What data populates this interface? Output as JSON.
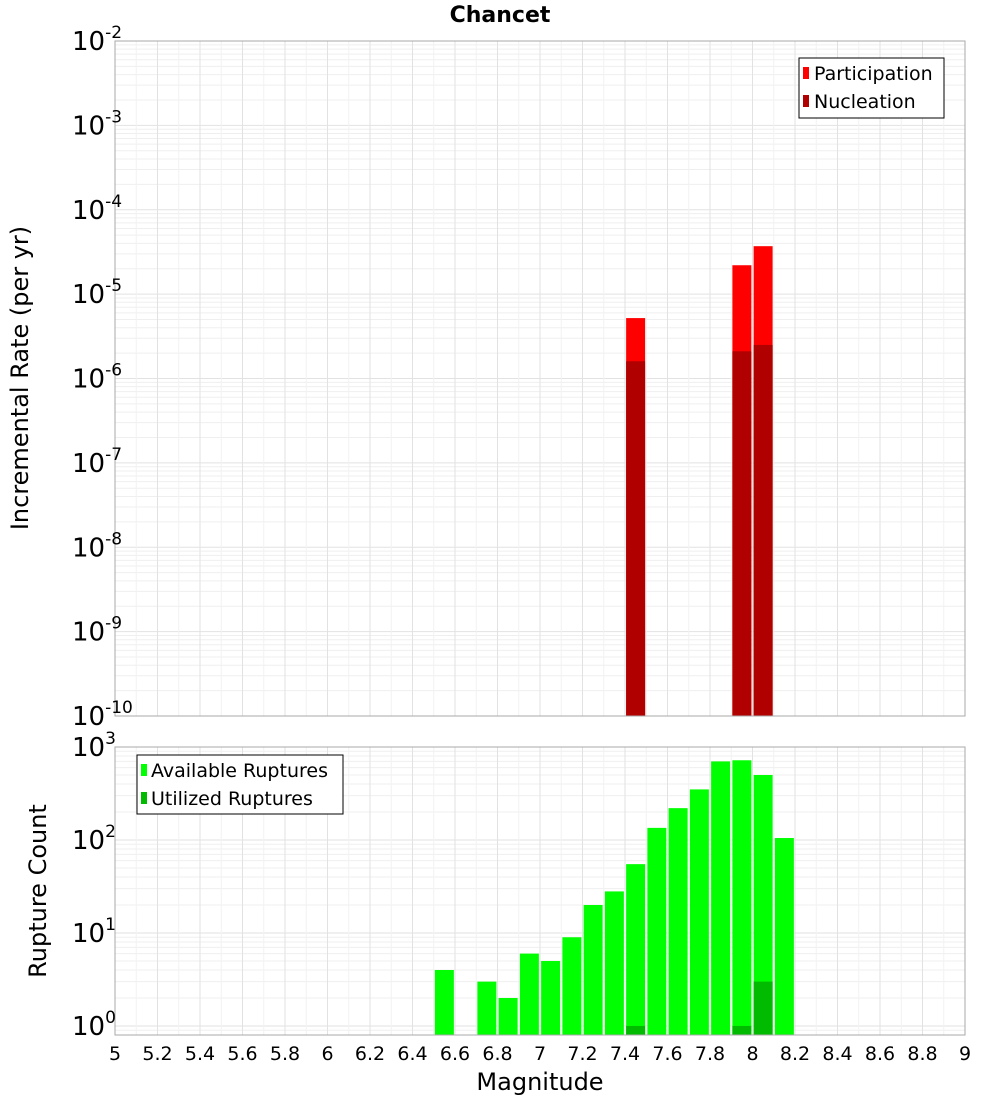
{
  "chart_data": {
    "title": "Chancet",
    "xlabel": "Magnitude",
    "xlim": [
      5,
      9
    ],
    "xticks": [
      "5",
      "5.2",
      "5.4",
      "5.6",
      "5.8",
      "6",
      "6.2",
      "6.4",
      "6.6",
      "6.8",
      "7",
      "7.2",
      "7.4",
      "7.6",
      "7.8",
      "8",
      "8.2",
      "8.4",
      "8.6",
      "8.8",
      "9"
    ],
    "panels": [
      {
        "type": "bar",
        "yscale": "log",
        "ylabel": "Incremental Rate (per yr)",
        "ylim": [
          1e-10,
          0.01
        ],
        "yticks": [
          {
            "base": "10",
            "exp": "-2"
          },
          {
            "base": "10",
            "exp": "-3"
          },
          {
            "base": "10",
            "exp": "-4"
          },
          {
            "base": "10",
            "exp": "-5"
          },
          {
            "base": "10",
            "exp": "-6"
          },
          {
            "base": "10",
            "exp": "-7"
          },
          {
            "base": "10",
            "exp": "-8"
          },
          {
            "base": "10",
            "exp": "-9"
          },
          {
            "base": "10",
            "exp": "-10"
          }
        ],
        "legend_position": "top-right",
        "series": [
          {
            "name": "Participation",
            "color": "#ff0000",
            "x": [
              7.45,
              7.95,
              8.05
            ],
            "values": [
              5.2e-06,
              2.2e-05,
              3.7e-05
            ]
          },
          {
            "name": "Nucleation",
            "color": "#b00000",
            "x": [
              7.45,
              7.95,
              8.05
            ],
            "values": [
              1.6e-06,
              2.1e-06,
              2.5e-06
            ]
          }
        ]
      },
      {
        "type": "bar",
        "yscale": "log",
        "ylabel": "Rupture Count",
        "ylim": [
          0.8,
          1000
        ],
        "yticks": [
          {
            "base": "10",
            "exp": "3"
          },
          {
            "base": "10",
            "exp": "2"
          },
          {
            "base": "10",
            "exp": "1"
          },
          {
            "base": "10",
            "exp": "0"
          }
        ],
        "legend_position": "top-left",
        "series": [
          {
            "name": "Available Ruptures",
            "color": "#00ff00",
            "x": [
              6.55,
              6.75,
              6.85,
              6.95,
              7.05,
              7.15,
              7.25,
              7.35,
              7.45,
              7.55,
              7.65,
              7.75,
              7.85,
              7.95,
              8.05,
              8.15
            ],
            "values": [
              4,
              3,
              2,
              6,
              5,
              9,
              20,
              28,
              55,
              135,
              220,
              350,
              700,
              720,
              500,
              105
            ]
          },
          {
            "name": "Utilized Ruptures",
            "color": "#00bb00",
            "x": [
              7.45,
              7.95,
              8.05
            ],
            "values": [
              1,
              1,
              3
            ]
          }
        ]
      }
    ]
  }
}
